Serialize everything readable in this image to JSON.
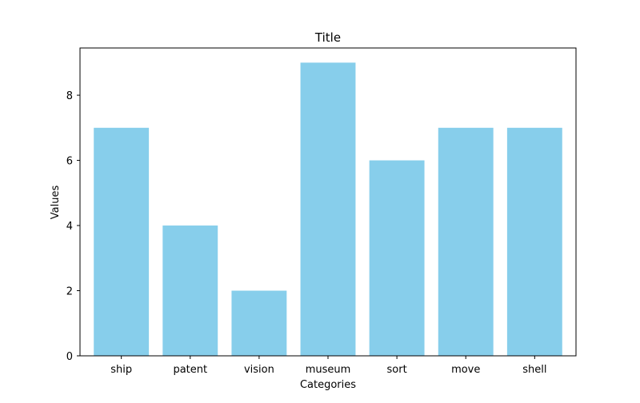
{
  "chart_data": {
    "type": "bar",
    "title": "Title",
    "xlabel": "Categories",
    "ylabel": "Values",
    "categories": [
      "ship",
      "patent",
      "vision",
      "museum",
      "sort",
      "move",
      "shell"
    ],
    "values": [
      7,
      4,
      2,
      9,
      6,
      7,
      7
    ],
    "ylim": [
      0,
      9.45
    ],
    "yticks": [
      0,
      2,
      4,
      6,
      8
    ],
    "ytick_labels": [
      "0",
      "2",
      "4",
      "6",
      "8"
    ],
    "grid": false,
    "legend": "none",
    "bar_color": "#87CEEB"
  }
}
